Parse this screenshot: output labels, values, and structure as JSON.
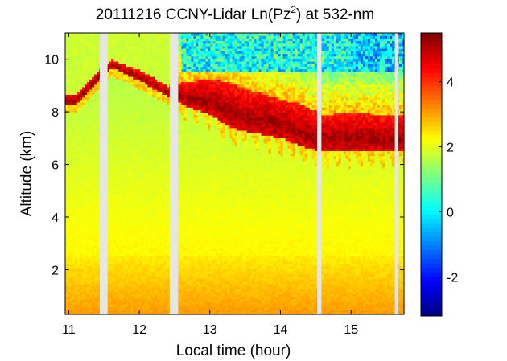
{
  "chart_data": {
    "type": "heatmap",
    "title_parts": {
      "main": "20111216 CCNY-Lidar Ln(Pz",
      "superscript": "2",
      "tail": ") at 532-nm"
    },
    "xlabel": "Local time (hour)",
    "ylabel": "Altitude (km)",
    "xlim": [
      10.95,
      15.75
    ],
    "ylim": [
      0.3,
      11.0
    ],
    "xticks": [
      11,
      12,
      13,
      14,
      15
    ],
    "xtick_labels": [
      "11",
      "12",
      "13",
      "14",
      "15"
    ],
    "yticks": [
      2,
      4,
      6,
      8,
      10
    ],
    "ytick_labels": [
      "2",
      "4",
      "6",
      "8",
      "10"
    ],
    "colorbar": {
      "range": [
        -3.2,
        5.5
      ],
      "ticks": [
        -2,
        0,
        2,
        4
      ],
      "tick_labels": [
        "-2",
        "0",
        "2",
        "4"
      ],
      "colormap": "jet"
    },
    "data_gaps_hours": [
      [
        11.44,
        11.55
      ],
      [
        12.43,
        12.55
      ],
      [
        14.52,
        14.58
      ],
      [
        15.62,
        15.67
      ]
    ],
    "layers": {
      "near_surface_value": 3.2,
      "boundary_layer_top_km": 2.5,
      "free_troposphere_value": 1.8,
      "background_value_above_cloud": 0.2,
      "cloud_peak_value": 5.2,
      "cloud_base_km": [
        {
          "t": 10.95,
          "base": 8.3,
          "thick": 0.4
        },
        {
          "t": 11.1,
          "base": 8.3,
          "thick": 0.4
        },
        {
          "t": 11.6,
          "base": 9.7,
          "thick": 0.3
        },
        {
          "t": 12.0,
          "base": 9.2,
          "thick": 0.4
        },
        {
          "t": 12.4,
          "base": 8.6,
          "thick": 0.4
        },
        {
          "t": 12.6,
          "base": 8.3,
          "thick": 0.8
        },
        {
          "t": 13.0,
          "base": 7.9,
          "thick": 1.4
        },
        {
          "t": 13.3,
          "base": 7.4,
          "thick": 1.7
        },
        {
          "t": 13.6,
          "base": 7.2,
          "thick": 1.6
        },
        {
          "t": 14.0,
          "base": 7.0,
          "thick": 1.5
        },
        {
          "t": 14.3,
          "base": 6.7,
          "thick": 1.6
        },
        {
          "t": 14.6,
          "base": 6.5,
          "thick": 1.4
        },
        {
          "t": 15.0,
          "base": 6.5,
          "thick": 1.5
        },
        {
          "t": 15.4,
          "base": 6.5,
          "thick": 1.4
        },
        {
          "t": 15.75,
          "base": 6.5,
          "thick": 1.4
        }
      ]
    },
    "gap_color": "#e6e6e6"
  }
}
